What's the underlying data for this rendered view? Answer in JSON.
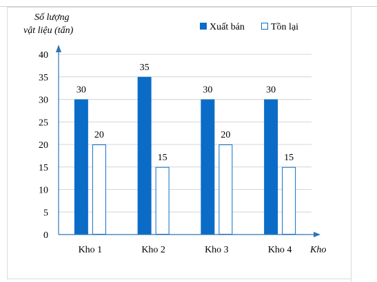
{
  "chart_data": {
    "type": "bar",
    "ylabel_line1": "Số lượng",
    "ylabel_line2": "vật liệu (tấn)",
    "xlabel": "Kho",
    "categories": [
      "Kho 1",
      "Kho 2",
      "Kho 3",
      "Kho 4"
    ],
    "yticks": [
      "0",
      "5",
      "10",
      "15",
      "20",
      "25",
      "30",
      "35",
      "40"
    ],
    "ylim": [
      0,
      40
    ],
    "grid": true,
    "legend_position": "top-right",
    "series": [
      {
        "name": "Xuất bán",
        "values": [
          30,
          35,
          30,
          30
        ],
        "color": "#0b6cc7",
        "fill": "solid"
      },
      {
        "name": "Tồn lại",
        "values": [
          20,
          15,
          20,
          15
        ],
        "color": "#0b6cc7",
        "fill": "outline"
      }
    ],
    "data_labels": {
      "series0": [
        "30",
        "35",
        "30",
        "30"
      ],
      "series1": [
        "20",
        "15",
        "20",
        "15"
      ]
    }
  }
}
